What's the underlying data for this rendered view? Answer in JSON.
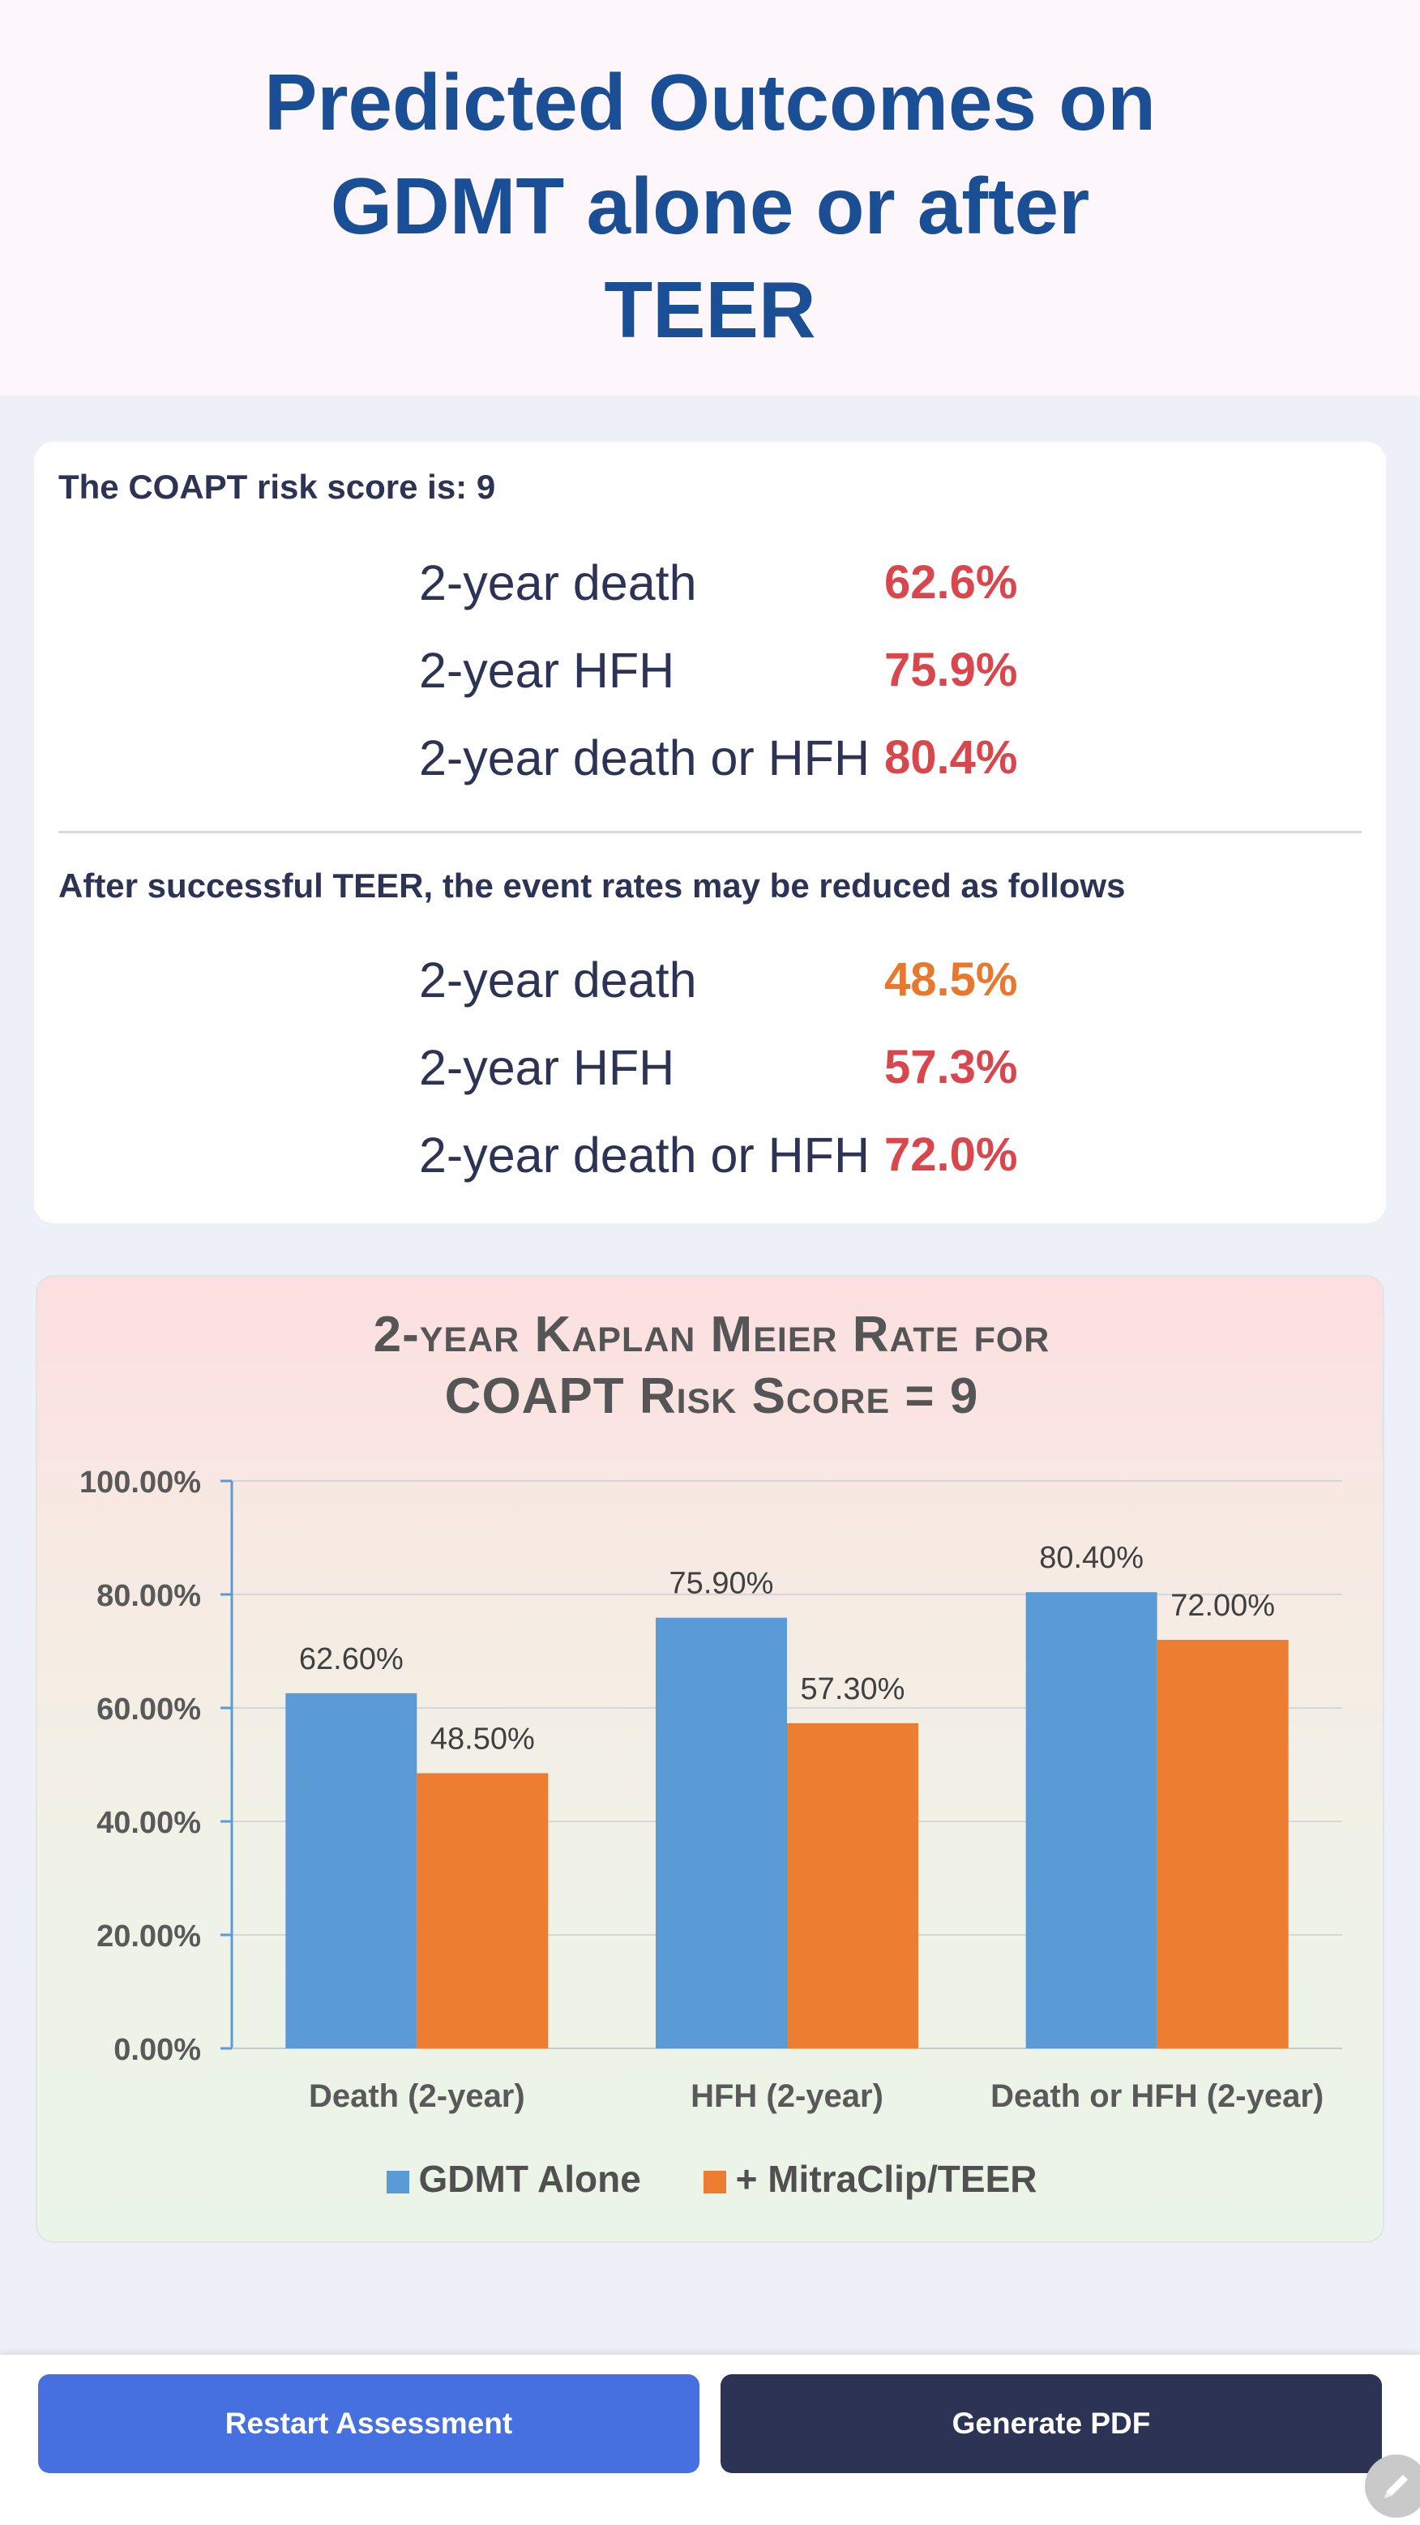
{
  "header": {
    "title_lines": [
      "Predicted Outcomes on",
      "GDMT alone or after",
      "TEER"
    ]
  },
  "colors": {
    "title": "#1a4e95",
    "value_red": "#d9474c",
    "value_orange": "#e8782e",
    "gdmt": "#5b9bd5",
    "teer": "#ed7d31",
    "primary_button": "#4670e0",
    "secondary_button": "#2c3354"
  },
  "results": {
    "risk_heading": "The COAPT risk score is: 9",
    "baseline": [
      {
        "label": "2-year death",
        "value": "62.6%",
        "tone": "red"
      },
      {
        "label": "2-year HFH",
        "value": "75.9%",
        "tone": "red"
      },
      {
        "label": "2-year death or HFH",
        "value": "80.4%",
        "tone": "red"
      }
    ],
    "teer_heading": "After successful TEER, the event rates may be reduced as follows",
    "after_teer": [
      {
        "label": "2-year death",
        "value": "48.5%",
        "tone": "orange"
      },
      {
        "label": "2-year HFH",
        "value": "57.3%",
        "tone": "red"
      },
      {
        "label": "2-year death or HFH",
        "value": "72.0%",
        "tone": "red"
      }
    ]
  },
  "chart_data": {
    "type": "bar",
    "title_lines": [
      "2-year Kaplan Meier Rate for",
      "COAPT Risk Score = 9"
    ],
    "categories": [
      "Death (2-year)",
      "HFH (2-year)",
      "Death or HFH (2-year)"
    ],
    "series": [
      {
        "name": "GDMT Alone",
        "values": [
          62.6,
          75.9,
          80.4
        ],
        "labels": [
          "62.60%",
          "75.90%",
          "80.40%"
        ],
        "color": "#5b9bd5"
      },
      {
        "name": "+ MitraClip/TEER",
        "values": [
          48.5,
          57.3,
          72.0
        ],
        "labels": [
          "48.50%",
          "57.30%",
          "72.00%"
        ],
        "color": "#ed7d31"
      }
    ],
    "y_ticks": [
      "0.00%",
      "20.00%",
      "40.00%",
      "60.00%",
      "80.00%",
      "100.00%"
    ],
    "ylim": [
      0,
      100
    ],
    "grid": true,
    "legend_position": "bottom"
  },
  "footer": {
    "restart_label": "Restart Assessment",
    "pdf_label": "Generate PDF"
  },
  "icons": {
    "edit": "pencil-icon"
  }
}
